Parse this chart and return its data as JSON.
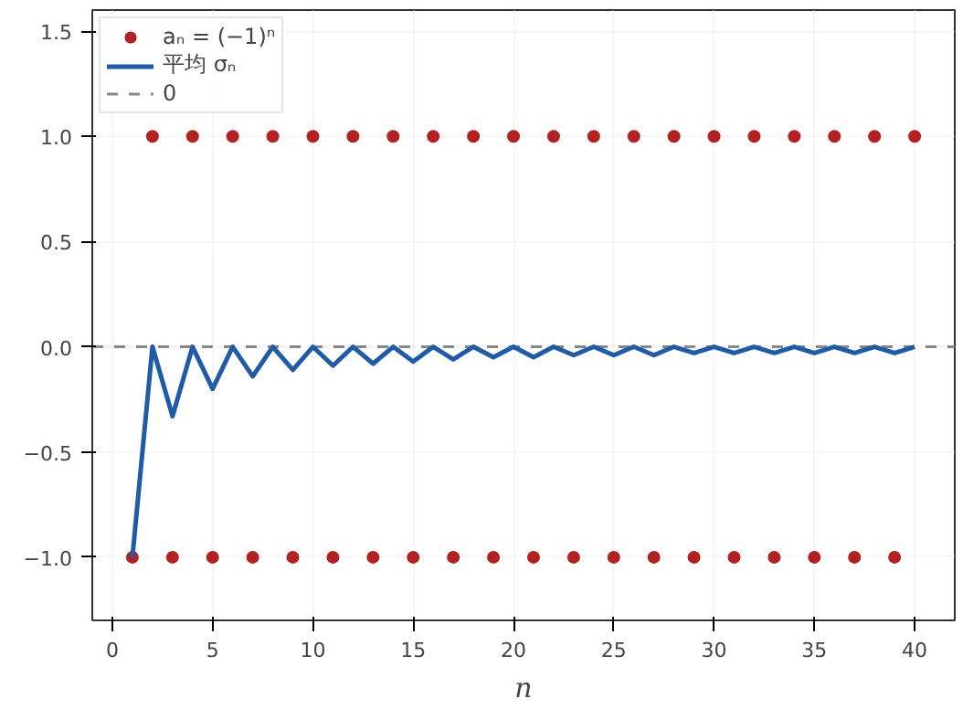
{
  "chart_data": {
    "type": "scatter",
    "xlabel": "n",
    "x": [
      1,
      2,
      3,
      4,
      5,
      6,
      7,
      8,
      9,
      10,
      11,
      12,
      13,
      14,
      15,
      16,
      17,
      18,
      19,
      20,
      21,
      22,
      23,
      24,
      25,
      26,
      27,
      28,
      29,
      30,
      31,
      32,
      33,
      34,
      35,
      36,
      37,
      38,
      39,
      40
    ],
    "series": [
      {
        "name": "aₙ = (−1)ⁿ",
        "color": "#b22222",
        "marker": "circle",
        "values": [
          -1,
          1,
          -1,
          1,
          -1,
          1,
          -1,
          1,
          -1,
          1,
          -1,
          1,
          -1,
          1,
          -1,
          1,
          -1,
          1,
          -1,
          1,
          -1,
          1,
          -1,
          1,
          -1,
          1,
          -1,
          1,
          -1,
          1,
          -1,
          1,
          -1,
          1,
          -1,
          1,
          -1,
          1,
          -1,
          1
        ]
      },
      {
        "name": "平均 σₙ",
        "type": "line",
        "color": "#1f5ba6",
        "line_style": "solid",
        "values": [
          -1,
          0,
          -0.33,
          0,
          -0.2,
          0,
          -0.14,
          0,
          -0.11,
          0,
          -0.09,
          0,
          -0.08,
          0,
          -0.07,
          0,
          -0.06,
          0,
          -0.05,
          0,
          -0.05,
          0,
          -0.04,
          0,
          -0.04,
          0,
          -0.04,
          0,
          -0.03,
          0,
          -0.03,
          0,
          -0.03,
          0,
          -0.03,
          0,
          -0.03,
          0,
          -0.03,
          0
        ]
      }
    ],
    "ref_lines": [
      {
        "axis": "y",
        "value": 0,
        "label": "0",
        "color": "#888888",
        "line_style": "dashed"
      }
    ],
    "xlim": [
      -1,
      42
    ],
    "ylim": [
      -1.3,
      1.6
    ],
    "xticks": [
      0,
      5,
      10,
      15,
      20,
      25,
      30,
      35,
      40
    ],
    "yticks": [
      {
        "value": -1,
        "label": "−1.0"
      },
      {
        "value": -0.5,
        "label": "−0.5"
      },
      {
        "value": 0,
        "label": "0.0"
      },
      {
        "value": 0.5,
        "label": "0.5"
      },
      {
        "value": 1,
        "label": "1.0"
      },
      {
        "value": 1.5,
        "label": "1.5"
      }
    ],
    "grid": true,
    "legend": "top left"
  }
}
